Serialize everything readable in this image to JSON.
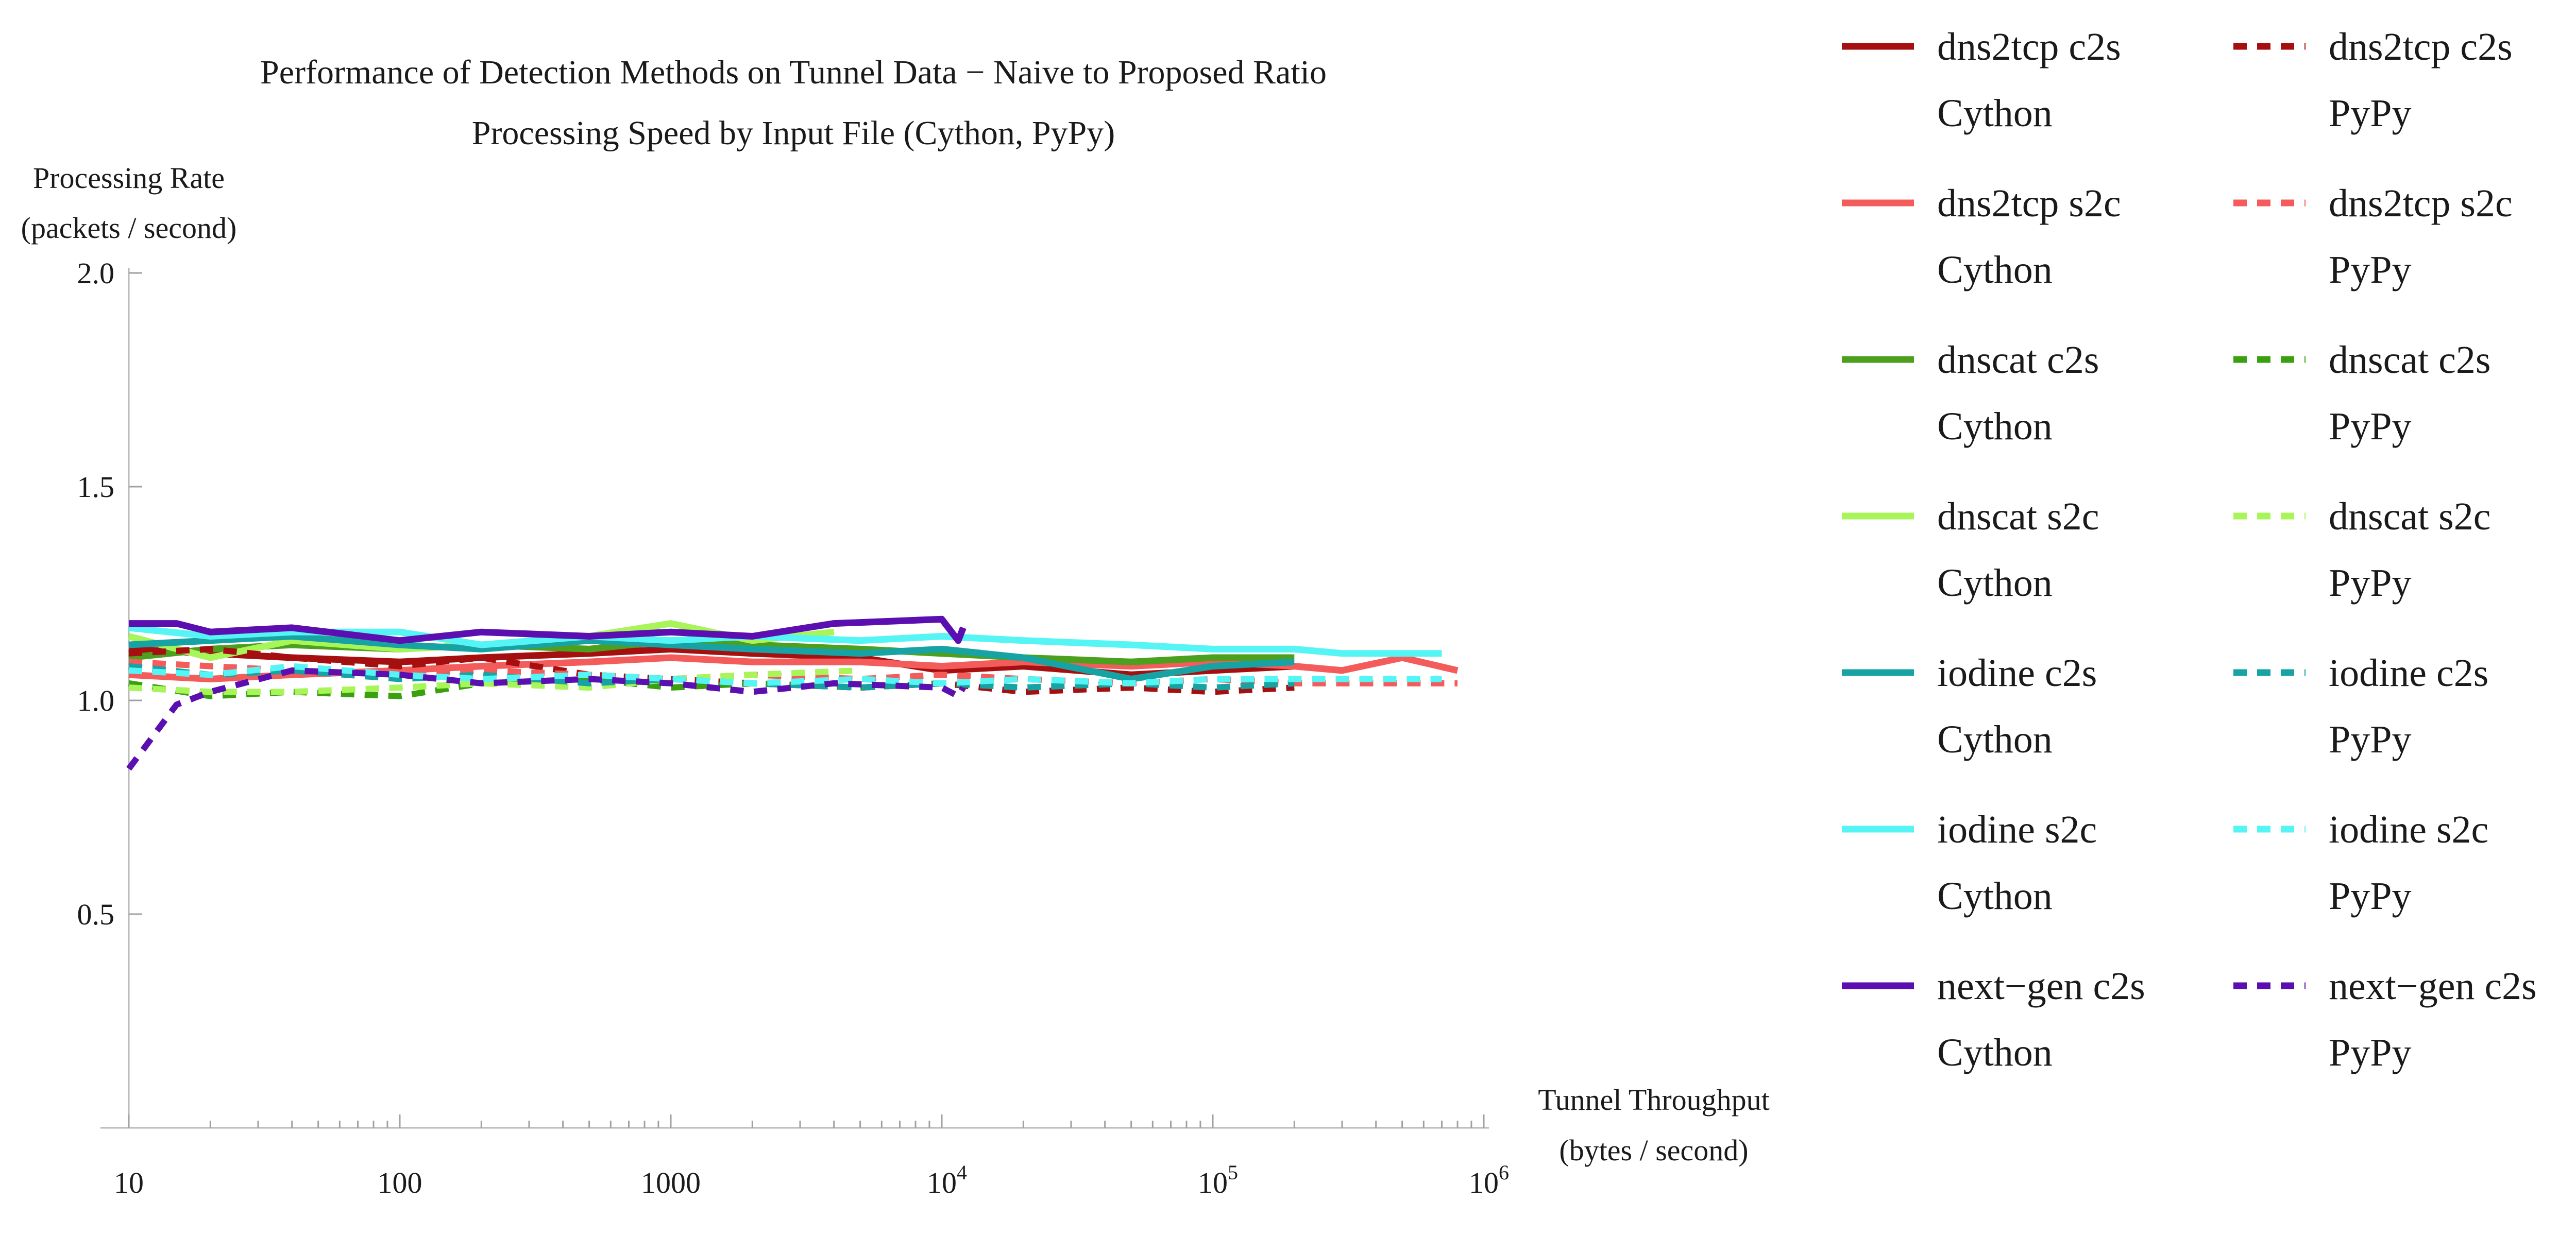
{
  "chart_data": {
    "type": "line",
    "title": "Performance of Detection Methods on Tunnel Data − Naive to Proposed Ratio",
    "subtitle": "Processing Speed by Input File (Cython, PyPy)",
    "ylabel": [
      "Processing Rate",
      "(packets / second)"
    ],
    "xlabel": [
      "Tunnel Throughput",
      "(bytes / second)"
    ],
    "x_scale": "log",
    "xlim": [
      10,
      1000000
    ],
    "ylim": [
      0,
      2.0
    ],
    "y_ticks": [
      {
        "value": 0.5,
        "label": "0.5"
      },
      {
        "value": 1.0,
        "label": "1.0"
      },
      {
        "value": 1.5,
        "label": "1.5"
      },
      {
        "value": 2.0,
        "label": "2.0"
      }
    ],
    "x_ticks": [
      {
        "value": 10,
        "label": "10",
        "exp": ""
      },
      {
        "value": 100,
        "label": "100",
        "exp": ""
      },
      {
        "value": 1000,
        "label": "1000",
        "exp": ""
      },
      {
        "value": 10000,
        "label": "10",
        "exp": "4"
      },
      {
        "value": 100000,
        "label": "10",
        "exp": "5"
      },
      {
        "value": 1000000,
        "label": "10",
        "exp": "6"
      }
    ],
    "grid": false,
    "legend_position": "right",
    "series": [
      {
        "name": "dns2tcp c2s",
        "method": "Cython",
        "color": "#a50f0f",
        "dashed": false,
        "x": [
          10,
          20,
          40,
          100,
          200,
          500,
          1000,
          2000,
          5000,
          10000,
          20000,
          50000,
          100000,
          200000
        ],
        "y": [
          1.12,
          1.11,
          1.1,
          1.09,
          1.1,
          1.11,
          1.12,
          1.11,
          1.1,
          1.07,
          1.08,
          1.06,
          1.07,
          1.08
        ]
      },
      {
        "name": "dns2tcp s2c",
        "method": "Cython",
        "color": "#f45b5b",
        "dashed": false,
        "x": [
          10,
          20,
          40,
          100,
          200,
          500,
          1000,
          2000,
          5000,
          10000,
          20000,
          50000,
          100000,
          200000,
          300000,
          500000,
          800000
        ],
        "y": [
          1.06,
          1.05,
          1.06,
          1.07,
          1.08,
          1.09,
          1.1,
          1.09,
          1.09,
          1.08,
          1.09,
          1.08,
          1.09,
          1.08,
          1.07,
          1.1,
          1.07
        ]
      },
      {
        "name": "dnscat c2s",
        "method": "Cython",
        "color": "#4ca01e",
        "dashed": false,
        "x": [
          10,
          20,
          40,
          100,
          200,
          500,
          1000,
          2000,
          5000,
          10000,
          20000,
          50000,
          100000,
          200000
        ],
        "y": [
          1.1,
          1.12,
          1.13,
          1.12,
          1.13,
          1.12,
          1.14,
          1.13,
          1.12,
          1.11,
          1.1,
          1.09,
          1.1,
          1.1
        ]
      },
      {
        "name": "dnscat s2c",
        "method": "Cython",
        "color": "#a8f55a",
        "dashed": false,
        "x": [
          10,
          20,
          40,
          100,
          200,
          500,
          1000,
          2000,
          4000
        ],
        "y": [
          1.15,
          1.1,
          1.14,
          1.12,
          1.13,
          1.15,
          1.18,
          1.14,
          1.16
        ]
      },
      {
        "name": "iodine c2s",
        "method": "Cython",
        "color": "#17a3a3",
        "dashed": false,
        "x": [
          10,
          20,
          40,
          100,
          200,
          500,
          1000,
          2000,
          5000,
          10000,
          20000,
          50000,
          100000,
          200000
        ],
        "y": [
          1.13,
          1.14,
          1.15,
          1.13,
          1.12,
          1.14,
          1.13,
          1.12,
          1.11,
          1.12,
          1.1,
          1.05,
          1.08,
          1.09
        ]
      },
      {
        "name": "iodine s2c",
        "method": "Cython",
        "color": "#55f5f5",
        "dashed": false,
        "x": [
          10,
          20,
          40,
          100,
          200,
          500,
          1000,
          2000,
          5000,
          10000,
          20000,
          50000,
          100000,
          200000,
          300000,
          700000
        ],
        "y": [
          1.17,
          1.15,
          1.16,
          1.16,
          1.13,
          1.15,
          1.14,
          1.15,
          1.14,
          1.15,
          1.14,
          1.13,
          1.12,
          1.12,
          1.11,
          1.11
        ]
      },
      {
        "name": "next−gen c2s",
        "method": "Cython",
        "color": "#5b0fb0",
        "dashed": false,
        "x": [
          10,
          15,
          20,
          40,
          100,
          200,
          500,
          1000,
          2000,
          4000,
          10000,
          11500,
          12000
        ],
        "y": [
          1.18,
          1.18,
          1.16,
          1.17,
          1.14,
          1.16,
          1.15,
          1.16,
          1.15,
          1.18,
          1.19,
          1.14,
          1.17
        ]
      },
      {
        "name": "dns2tcp c2s",
        "method": "PyPy",
        "color": "#a50f0f",
        "dashed": true,
        "x": [
          10,
          20,
          40,
          100,
          200,
          500,
          1000,
          2000,
          5000,
          10000,
          20000,
          50000,
          100000,
          200000
        ],
        "y": [
          1.11,
          1.12,
          1.1,
          1.08,
          1.1,
          1.06,
          1.05,
          1.04,
          1.03,
          1.04,
          1.02,
          1.03,
          1.02,
          1.03
        ]
      },
      {
        "name": "dns2tcp s2c",
        "method": "PyPy",
        "color": "#f45b5b",
        "dashed": true,
        "x": [
          10,
          20,
          40,
          100,
          200,
          500,
          1000,
          2000,
          5000,
          10000,
          20000,
          50000,
          100000,
          200000,
          500000,
          800000
        ],
        "y": [
          1.09,
          1.08,
          1.07,
          1.06,
          1.07,
          1.06,
          1.05,
          1.06,
          1.05,
          1.06,
          1.05,
          1.04,
          1.05,
          1.04,
          1.04,
          1.04
        ]
      },
      {
        "name": "dnscat c2s",
        "method": "PyPy",
        "color": "#3aa010",
        "dashed": true,
        "x": [
          10,
          20,
          40,
          100,
          200,
          500,
          1000,
          2000,
          5000,
          10000
        ],
        "y": [
          1.04,
          1.01,
          1.02,
          1.01,
          1.04,
          1.05,
          1.03,
          1.04,
          1.03,
          1.04
        ]
      },
      {
        "name": "dnscat s2c",
        "method": "PyPy",
        "color": "#a8f55a",
        "dashed": true,
        "x": [
          10,
          20,
          40,
          100,
          200,
          500,
          1000,
          2000,
          5000
        ],
        "y": [
          1.03,
          1.02,
          1.02,
          1.03,
          1.04,
          1.03,
          1.05,
          1.06,
          1.07
        ]
      },
      {
        "name": "iodine c2s",
        "method": "PyPy",
        "color": "#17a3a3",
        "dashed": true,
        "x": [
          10,
          20,
          40,
          100,
          200,
          500,
          1000,
          2000,
          5000,
          10000,
          20000,
          50000,
          100000,
          200000
        ],
        "y": [
          1.08,
          1.06,
          1.07,
          1.05,
          1.06,
          1.04,
          1.05,
          1.04,
          1.03,
          1.04,
          1.03,
          1.04,
          1.03,
          1.04
        ]
      },
      {
        "name": "iodine s2c",
        "method": "PyPy",
        "color": "#55f5f5",
        "dashed": true,
        "x": [
          10,
          20,
          40,
          100,
          200,
          500,
          1000,
          2000,
          5000,
          10000,
          20000,
          50000,
          100000,
          200000,
          300000,
          700000
        ],
        "y": [
          1.07,
          1.06,
          1.08,
          1.06,
          1.05,
          1.06,
          1.05,
          1.04,
          1.05,
          1.04,
          1.05,
          1.04,
          1.05,
          1.05,
          1.05,
          1.05
        ]
      },
      {
        "name": "next−gen c2s",
        "method": "PyPy",
        "color": "#5b0fb0",
        "dashed": true,
        "x": [
          10,
          15,
          20,
          40,
          100,
          200,
          500,
          1000,
          2000,
          4000,
          10000,
          11500,
          12000
        ],
        "y": [
          0.84,
          0.99,
          1.02,
          1.07,
          1.06,
          1.04,
          1.05,
          1.04,
          1.02,
          1.04,
          1.03,
          1.01,
          1.03
        ]
      }
    ],
    "legend": [
      {
        "name": "dns2tcp c2s",
        "method": "Cython",
        "color": "#a50f0f",
        "dashed": false
      },
      {
        "name": "dns2tcp s2c",
        "method": "Cython",
        "color": "#f45b5b",
        "dashed": false
      },
      {
        "name": "dnscat c2s",
        "method": "Cython",
        "color": "#4ca01e",
        "dashed": false
      },
      {
        "name": "dnscat s2c",
        "method": "Cython",
        "color": "#a8f55a",
        "dashed": false
      },
      {
        "name": "iodine c2s",
        "method": "Cython",
        "color": "#17a3a3",
        "dashed": false
      },
      {
        "name": "iodine s2c",
        "method": "Cython",
        "color": "#55f5f5",
        "dashed": false
      },
      {
        "name": "next−gen c2s",
        "method": "Cython",
        "color": "#5b0fb0",
        "dashed": false
      },
      {
        "name": "dns2tcp c2s",
        "method": "PyPy",
        "color": "#a50f0f",
        "dashed": true
      },
      {
        "name": "dns2tcp s2c",
        "method": "PyPy",
        "color": "#f45b5b",
        "dashed": true
      },
      {
        "name": "dnscat c2s",
        "method": "PyPy",
        "color": "#3aa010",
        "dashed": true
      },
      {
        "name": "dnscat s2c",
        "method": "PyPy",
        "color": "#a8f55a",
        "dashed": true
      },
      {
        "name": "iodine c2s",
        "method": "PyPy",
        "color": "#17a3a3",
        "dashed": true
      },
      {
        "name": "iodine s2c",
        "method": "PyPy",
        "color": "#55f5f5",
        "dashed": true
      },
      {
        "name": "next−gen c2s",
        "method": "PyPy",
        "color": "#5b0fb0",
        "dashed": true
      }
    ]
  }
}
